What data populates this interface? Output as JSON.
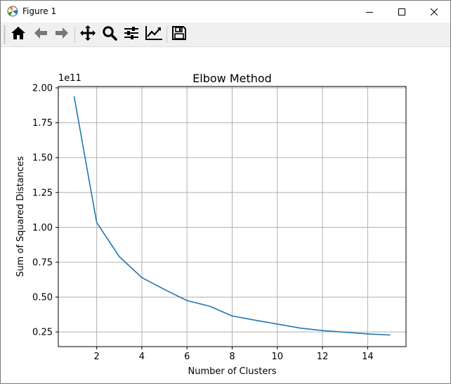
{
  "window": {
    "title": "Figure 1",
    "app_icon": "matplotlib-icon",
    "controls": [
      "minimize-icon",
      "maximize-icon",
      "close-icon"
    ]
  },
  "toolbar": {
    "buttons": [
      "home-icon",
      "back-arrow-icon",
      "forward-arrow-icon",
      "pan-icon",
      "zoom-icon",
      "configure-subplots-icon",
      "edit-axis-icon",
      "save-icon"
    ]
  },
  "chart_data": {
    "type": "line",
    "title": "Elbow Method",
    "xlabel": "Number of Clusters",
    "ylabel": "Sum of Squared Distances",
    "y_offset_label": "1e11",
    "xlim": [
      0.3,
      15.7
    ],
    "ylim": [
      0.145,
      2.01
    ],
    "x_ticks": [
      2,
      4,
      6,
      8,
      10,
      12,
      14
    ],
    "x_tick_labels": [
      "2",
      "4",
      "6",
      "8",
      "10",
      "12",
      "14"
    ],
    "y_ticks": [
      0.25,
      0.5,
      0.75,
      1.0,
      1.25,
      1.5,
      1.75,
      2.0
    ],
    "y_tick_labels": [
      "0.25",
      "0.50",
      "0.75",
      "1.00",
      "1.25",
      "1.50",
      "1.75",
      "2.00"
    ],
    "grid": true,
    "color": "#1f77b4",
    "series": [
      {
        "x": [
          1,
          2,
          3,
          4,
          5,
          6,
          7,
          8,
          9,
          10,
          11,
          12,
          13,
          14,
          15
        ],
        "y": [
          1.94,
          1.035,
          0.79,
          0.64,
          0.555,
          0.475,
          0.435,
          0.365,
          0.335,
          0.307,
          0.278,
          0.26,
          0.248,
          0.236,
          0.228
        ]
      }
    ]
  }
}
